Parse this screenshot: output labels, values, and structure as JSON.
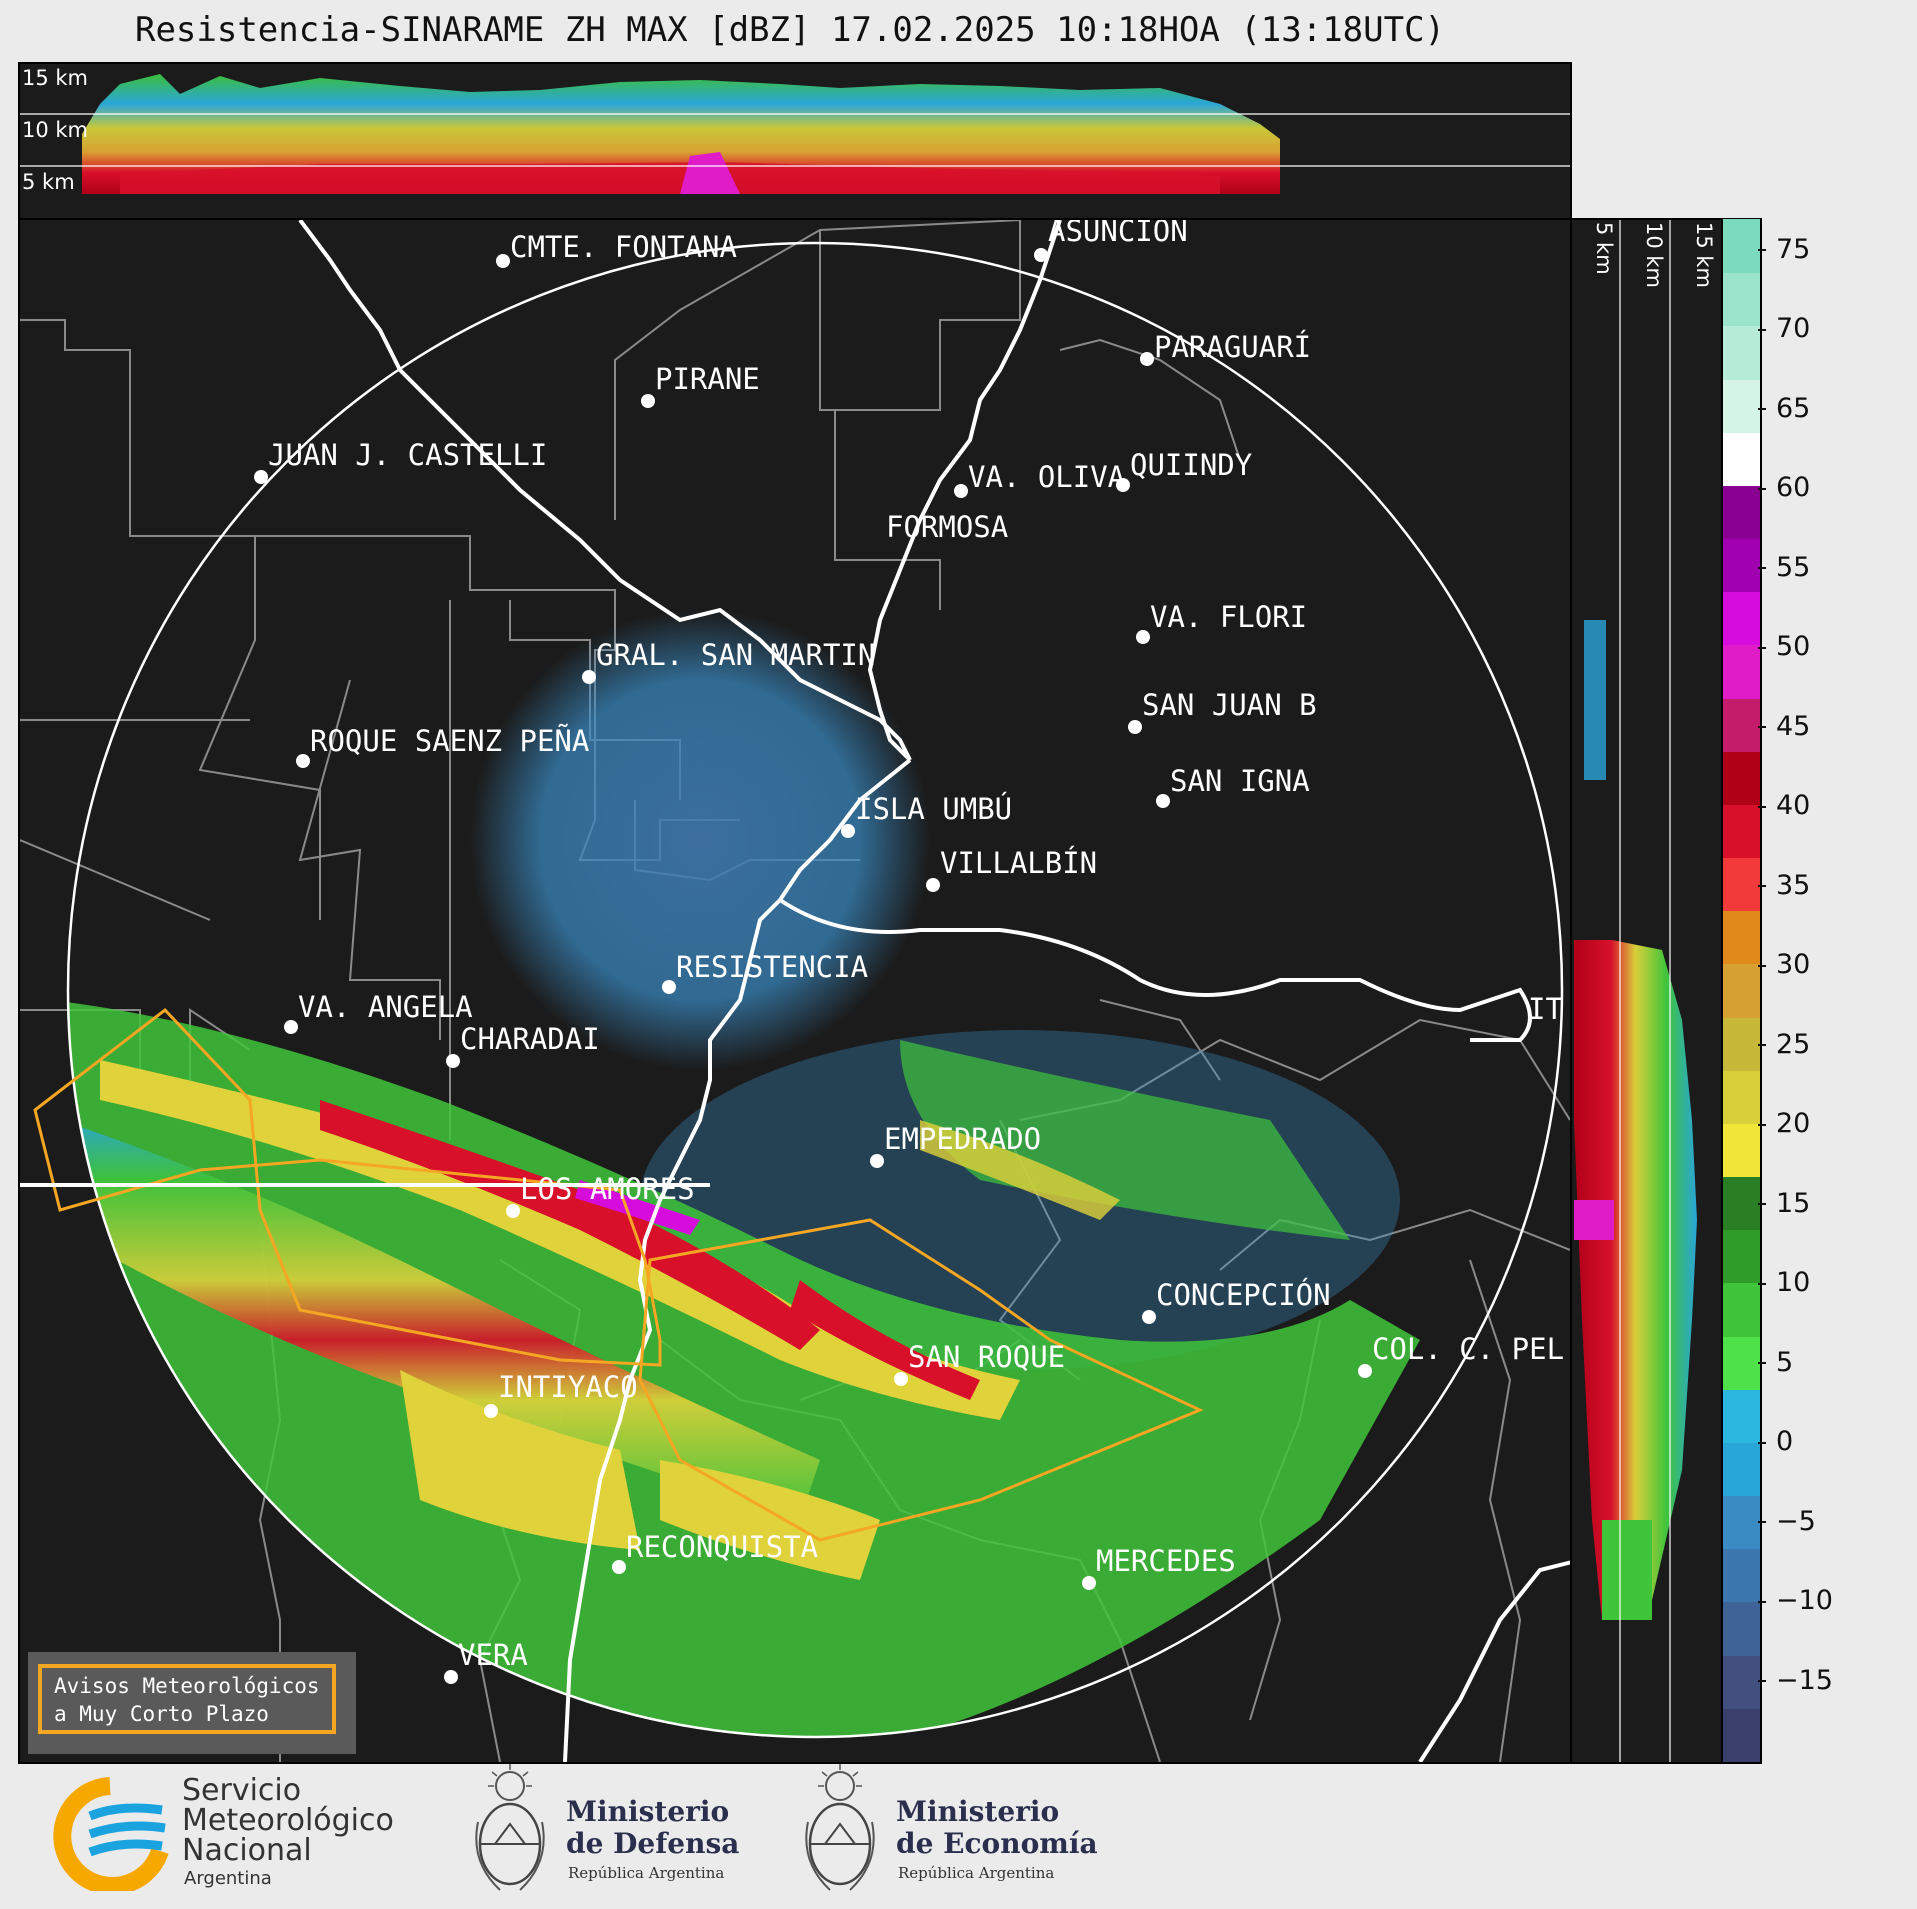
{
  "title": "Resistencia-SINARAME ZH MAX [dBZ] 17.02.2025 10:18HOA (13:18UTC)",
  "top_panel": {
    "height_labels": [
      "15 km",
      "10 km",
      "5 km"
    ]
  },
  "side_panel": {
    "height_labels": [
      "5 km",
      "10 km",
      "15 km"
    ]
  },
  "cities": [
    {
      "name": "CMTE. FONTANA"
    },
    {
      "name": "ASUNCIÓN"
    },
    {
      "name": "PARAGUARÍ"
    },
    {
      "name": "PIRANE"
    },
    {
      "name": "JUAN J. CASTELLI"
    },
    {
      "name": "VA. OLIVA"
    },
    {
      "name": "QUIINDY"
    },
    {
      "name": "FORMOSA"
    },
    {
      "name": "VA. FLORI"
    },
    {
      "name": "GRAL. SAN MARTIN"
    },
    {
      "name": "SAN JUAN B"
    },
    {
      "name": "ROQUE SAENZ PEÑA"
    },
    {
      "name": "SAN IGNA"
    },
    {
      "name": "ISLA UMBÚ"
    },
    {
      "name": "VILLALBÍN"
    },
    {
      "name": "RESISTENCIA"
    },
    {
      "name": "VA. ANGELA"
    },
    {
      "name": "CHARADAI"
    },
    {
      "name": "IT"
    },
    {
      "name": "EMPEDRADO"
    },
    {
      "name": "LOS AMORES"
    },
    {
      "name": "CONCEPCIÓN"
    },
    {
      "name": "SAN ROQUE"
    },
    {
      "name": "COL. C. PEL"
    },
    {
      "name": "INTIYACO"
    },
    {
      "name": "RECONQUISTA"
    },
    {
      "name": "MERCEDES"
    },
    {
      "name": "VERA"
    }
  ],
  "colorbar": {
    "unit": "dBZ",
    "ticks": [
      "75",
      "70",
      "65",
      "60",
      "55",
      "50",
      "45",
      "40",
      "35",
      "30",
      "25",
      "20",
      "15",
      "10",
      "5",
      "0",
      "−5",
      "−10",
      "−15"
    ],
    "range": [
      -20,
      77
    ],
    "colors": [
      "#3b3f6b",
      "#41507f",
      "#3f6396",
      "#3c77ad",
      "#3a8bc4",
      "#29a6d8",
      "#2bb7e0",
      "#4ee14a",
      "#3fc43a",
      "#2f9c2a",
      "#2a7f24",
      "#f0e63a",
      "#d9cf3a",
      "#c8b83a",
      "#d6a132",
      "#e08a1c",
      "#f23a3a",
      "#d8102a",
      "#b00018",
      "#c41b6b",
      "#e01cc8",
      "#d60cdd",
      "#a000b0",
      "#8a0090",
      "#ffffff",
      "#d4f5e6",
      "#b6ecd8",
      "#9ae4cc",
      "#7cdbbd"
    ]
  },
  "warning_box": {
    "line1": "Avisos Meteorológicos",
    "line2": "a Muy Corto Plazo",
    "border_color": "#f5a623"
  },
  "logos": {
    "smn": {
      "line1": "Servicio",
      "line2": "Meteorológico",
      "line3": "Nacional",
      "line4": "Argentina"
    },
    "defensa": {
      "line1": "Ministerio",
      "line2": "de Defensa",
      "line3": "República Argentina"
    },
    "economia": {
      "line1": "Ministerio",
      "line2": "de Economía",
      "line3": "República Argentina"
    }
  },
  "colors": {
    "background": "#1b1b1b",
    "warning_polygon": "#f5a623",
    "river": "#ffffff",
    "border": "#808080"
  }
}
